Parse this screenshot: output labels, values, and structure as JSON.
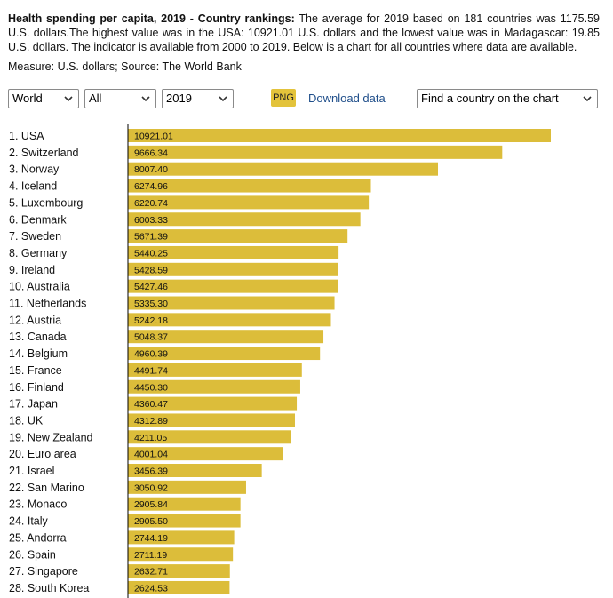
{
  "header": {
    "title": "Health spending per capita, 2019 - Country rankings:",
    "description": "The average for 2019 based on 181 countries was 1175.59 U.S. dollars.The highest value was in the USA: 10921.01 U.S. dollars and the lowest value was in Madagascar: 19.85 U.S. dollars. The indicator is available from 2000 to 2019. Below is a chart for all countries where data are available.",
    "measure": "Measure: U.S. dollars; Source: The World Bank"
  },
  "controls": {
    "region": "World",
    "group": "All",
    "year": "2019",
    "png_label": "PNG",
    "download_label": "Download data",
    "find_country": "Find a country on the chart"
  },
  "colors": {
    "bar": "#dcbd3a",
    "axis": "#000000"
  },
  "chart_data": {
    "type": "bar",
    "orientation": "horizontal",
    "categories": [
      "1. USA",
      "2. Switzerland",
      "3. Norway",
      "4. Iceland",
      "5. Luxembourg",
      "6. Denmark",
      "7. Sweden",
      "8. Germany",
      "9. Ireland",
      "10. Australia",
      "11. Netherlands",
      "12. Austria",
      "13. Canada",
      "14. Belgium",
      "15. France",
      "16. Finland",
      "17. Japan",
      "18. UK",
      "19. New Zealand",
      "20. Euro area",
      "21. Israel",
      "22. San Marino",
      "23. Monaco",
      "24. Italy",
      "25. Andorra",
      "26. Spain",
      "27. Singapore",
      "28. South Korea"
    ],
    "values": [
      10921.01,
      9666.34,
      8007.4,
      6274.96,
      6220.74,
      6003.33,
      5671.39,
      5440.25,
      5428.59,
      5427.46,
      5335.3,
      5242.18,
      5048.37,
      4960.39,
      4491.74,
      4450.3,
      4360.47,
      4312.89,
      4211.05,
      4001.04,
      3456.39,
      3050.92,
      2905.84,
      2905.5,
      2744.19,
      2711.19,
      2632.71,
      2624.53
    ],
    "value_labels": [
      "10921.01",
      "9666.34",
      "8007.40",
      "6274.96",
      "6220.74",
      "6003.33",
      "5671.39",
      "5440.25",
      "5428.59",
      "5427.46",
      "5335.30",
      "5242.18",
      "5048.37",
      "4960.39",
      "4491.74",
      "4450.30",
      "4360.47",
      "4312.89",
      "4211.05",
      "4001.04",
      "3456.39",
      "3050.92",
      "2905.84",
      "2905.50",
      "2744.19",
      "2711.19",
      "2632.71",
      "2624.53"
    ],
    "xlim": [
      0,
      10921.01
    ],
    "grid": false,
    "legend": "none"
  }
}
